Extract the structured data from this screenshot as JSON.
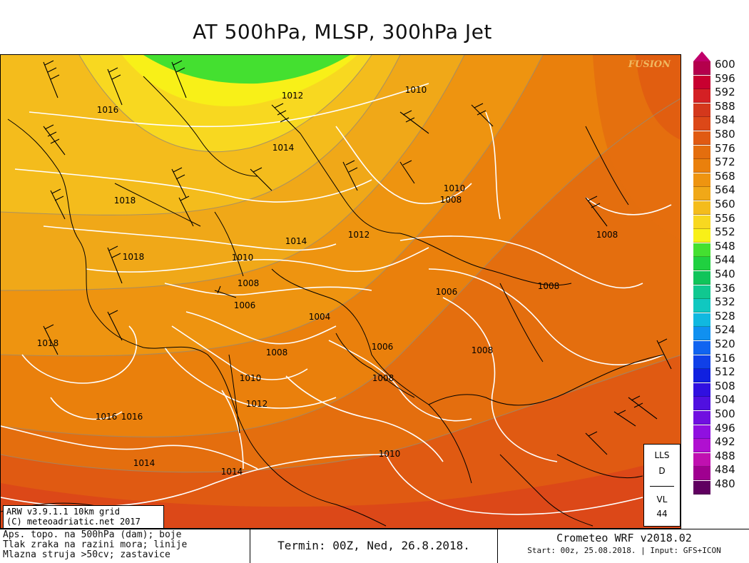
{
  "title": "AT 500hPa, MLSP, 300hPa Jet",
  "watermark": "FUSION",
  "legend": {
    "values": [
      "600",
      "596",
      "592",
      "588",
      "584",
      "580",
      "576",
      "572",
      "568",
      "564",
      "560",
      "556",
      "552",
      "548",
      "544",
      "540",
      "536",
      "532",
      "528",
      "524",
      "520",
      "516",
      "512",
      "508",
      "504",
      "500",
      "496",
      "492",
      "488",
      "484",
      "480"
    ],
    "colors": [
      "#b4004c",
      "#c80030",
      "#d42024",
      "#d4381c",
      "#dc4818",
      "#e05a12",
      "#e46e0e",
      "#ea800c",
      "#ee9410",
      "#f0a818",
      "#f4bc1c",
      "#f8d820",
      "#f8f018",
      "#44e030",
      "#20d040",
      "#10c45a",
      "#10c890",
      "#10c8c0",
      "#10b8e0",
      "#1090f0",
      "#1064f0",
      "#1040e8",
      "#1020e0",
      "#3010e0",
      "#5010e0",
      "#7010e0",
      "#9010e0",
      "#b010d0",
      "#c010b0",
      "#a00090",
      "#600060"
    ],
    "arrow_top_color": "#c0006a",
    "arrow_bottom_color": "#600060"
  },
  "pressure_labels": [
    {
      "t": "1012"
    },
    {
      "t": "1010"
    },
    {
      "t": "1016"
    },
    {
      "t": "1014"
    },
    {
      "t": "1018"
    },
    {
      "t": "1016"
    },
    {
      "t": "1010"
    },
    {
      "t": "1008"
    },
    {
      "t": "1012"
    },
    {
      "t": "1014"
    },
    {
      "t": "1008"
    },
    {
      "t": "1018"
    },
    {
      "t": "1010"
    },
    {
      "t": "1008"
    },
    {
      "t": "1006"
    },
    {
      "t": "1008"
    },
    {
      "t": "1006"
    },
    {
      "t": "1004"
    },
    {
      "t": "1018"
    },
    {
      "t": "1008"
    },
    {
      "t": "1006"
    },
    {
      "t": "1008"
    },
    {
      "t": "1008"
    },
    {
      "t": "1010"
    },
    {
      "t": "1012"
    },
    {
      "t": "1016"
    },
    {
      "t": "1010"
    },
    {
      "t": "1014"
    },
    {
      "t": "1014"
    }
  ],
  "lls_box": {
    "line1": "LLS",
    "line2": "D",
    "line3": "VL",
    "line4": "44"
  },
  "version_box": {
    "line1": "ARW v3.9.1.1 10km grid",
    "line2": "(C) meteoadriatic.net 2017"
  },
  "footer": {
    "desc1": "Aps. topo. na 500hPa (dam); boje",
    "desc2": "Tlak zraka na razini mora; linije",
    "desc3": "Mlazna struja >50cv; zastavice",
    "termin": "Termin: 00Z, Ned, 26.8.2018.",
    "model": "Crometeo WRF v2018.02",
    "start": "Start: 00z, 25.08.2018. | Input: GFS+ICON"
  }
}
